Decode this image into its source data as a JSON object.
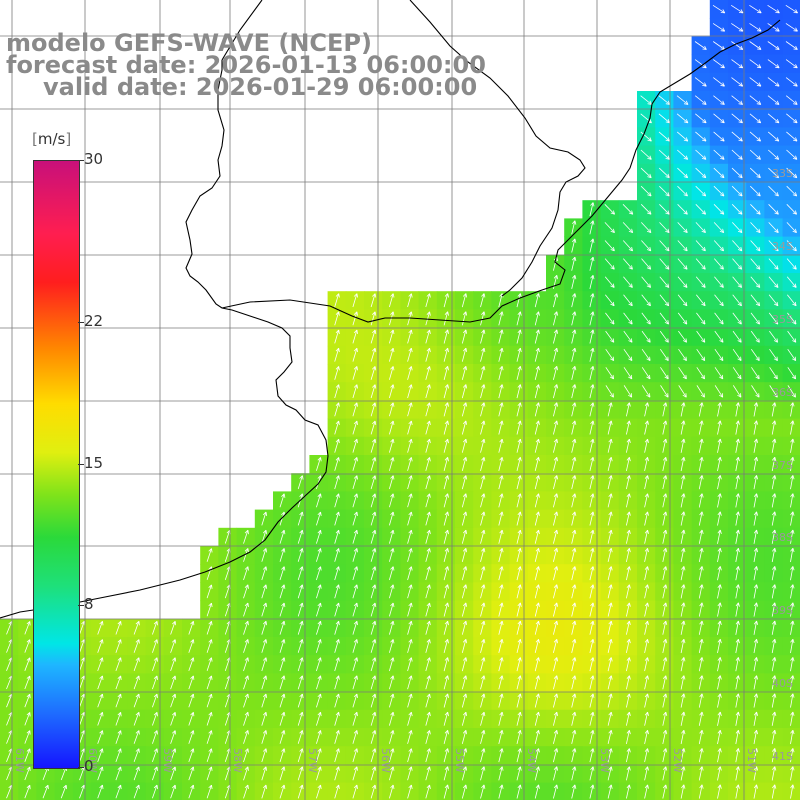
{
  "title": {
    "line1": "modelo GEFS-WAVE (NCEP)",
    "line2": "forecast date: 2026-01-13 06:00:00",
    "line3": "valid date: 2026-01-29 06:00:00"
  },
  "colorbar": {
    "unit_open": "[",
    "unit": "m/s",
    "unit_close": "]",
    "ticks": [
      {
        "label": "30",
        "value": 30
      },
      {
        "label": "22",
        "value": 22
      },
      {
        "label": "15",
        "value": 15
      },
      {
        "label": "8",
        "value": 8
      },
      {
        "label": "0",
        "value": 0
      }
    ],
    "min": 0,
    "max": 30
  },
  "map": {
    "lon_labels": [
      "61W",
      "60W",
      "59W",
      "58W",
      "57W",
      "56W",
      "55W",
      "54W",
      "53W",
      "52W",
      "51W"
    ],
    "lat_labels": [
      "33S",
      "34S",
      "35S",
      "36S",
      "37S",
      "38S",
      "39S",
      "40S",
      "41S"
    ],
    "land_color": "#ffffff",
    "grid_color": "#7a7a7a",
    "coast_color": "#000000",
    "arrow_color": "#ffffff",
    "wind_direction": "from SW over the south and west; from NW in the northeast corner"
  }
}
